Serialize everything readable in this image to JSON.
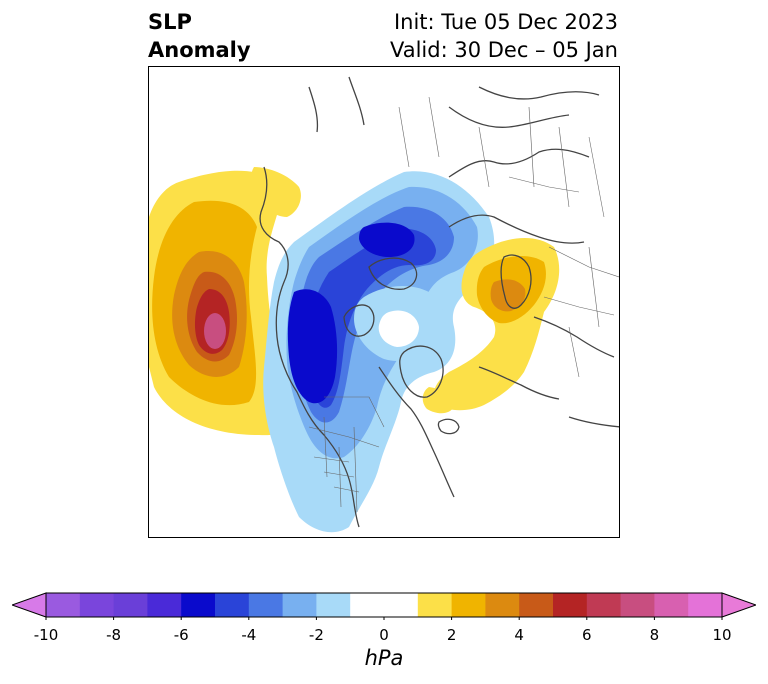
{
  "title": {
    "left_line1": "SLP",
    "left_line2": "Anomaly",
    "right_line1": "Init: Tue 05 Dec 2023",
    "right_line2": "Valid: 30 Dec – 05 Jan"
  },
  "colorbar": {
    "units": "hPa",
    "tick_labels": [
      "-10",
      "-8",
      "-6",
      "-4",
      "-2",
      "0",
      "2",
      "4",
      "6",
      "8",
      "10"
    ],
    "bins": [
      {
        "from": -10,
        "to": -9,
        "color": "#9a5ae0"
      },
      {
        "from": -9,
        "to": -8,
        "color": "#7a45dc"
      },
      {
        "from": -8,
        "to": -7,
        "color": "#6a3fd8"
      },
      {
        "from": -7,
        "to": -6,
        "color": "#4a2ad8"
      },
      {
        "from": -6,
        "to": -5,
        "color": "#0a0acc"
      },
      {
        "from": -5,
        "to": -4,
        "color": "#2a44d8"
      },
      {
        "from": -4,
        "to": -3,
        "color": "#4a78e4"
      },
      {
        "from": -3,
        "to": -2,
        "color": "#78b0f0"
      },
      {
        "from": -2,
        "to": -1,
        "color": "#a8daf8"
      },
      {
        "from": -1,
        "to": 1,
        "color": "#ffffff"
      },
      {
        "from": 1,
        "to": 2,
        "color": "#fce048"
      },
      {
        "from": 2,
        "to": 3,
        "color": "#f0b400"
      },
      {
        "from": 3,
        "to": 4,
        "color": "#dc8a10"
      },
      {
        "from": 4,
        "to": 5,
        "color": "#c85a18"
      },
      {
        "from": 5,
        "to": 6,
        "color": "#b42424"
      },
      {
        "from": 6,
        "to": 7,
        "color": "#c03a54"
      },
      {
        "from": 7,
        "to": 8,
        "color": "#c84e80"
      },
      {
        "from": 8,
        "to": 9,
        "color": "#d860b0"
      },
      {
        "from": 9,
        "to": 10,
        "color": "#e472d8"
      }
    ],
    "under_color": "#d77ae8",
    "over_color": "#e87ad8"
  },
  "map": {
    "projection": "polar-stereographic-north",
    "anomaly_centers": [
      {
        "name": "north-pacific-high",
        "peak_hpa": 8
      },
      {
        "name": "western-canada-low",
        "peak_hpa": -6
      },
      {
        "name": "siberian-arctic-low",
        "peak_hpa": -5
      },
      {
        "name": "scandinavia-high",
        "peak_hpa": 4
      },
      {
        "name": "greenland-sea-high",
        "peak_hpa": 2
      }
    ]
  }
}
